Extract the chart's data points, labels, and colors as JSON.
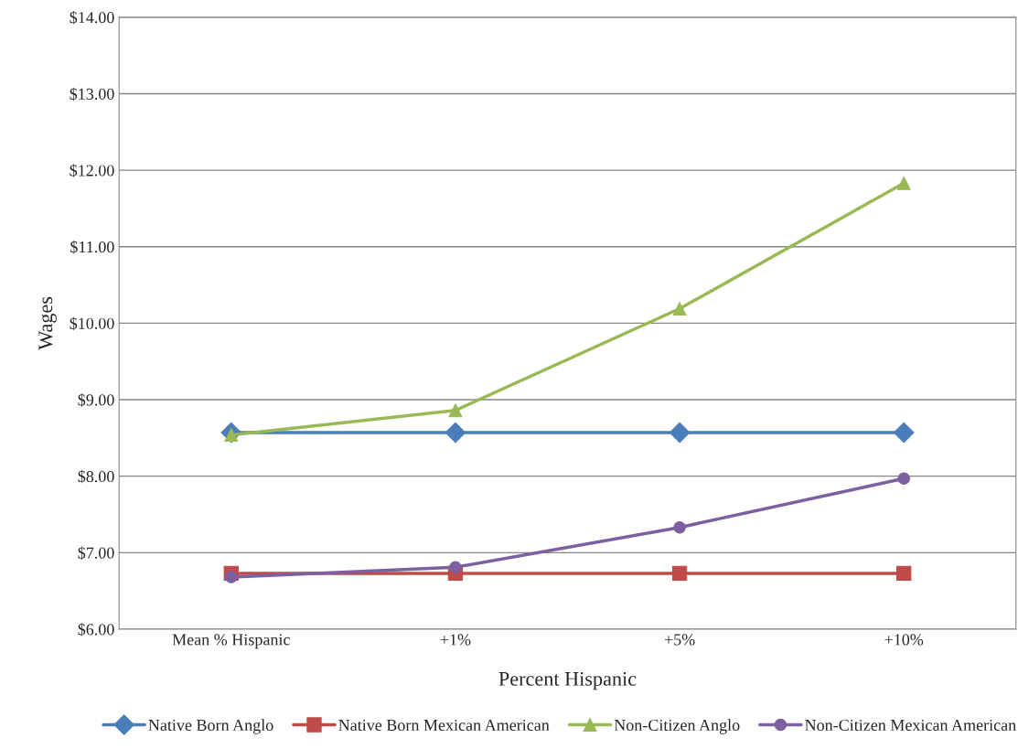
{
  "chart_data": {
    "type": "line",
    "xlabel": "Percent Hispanic",
    "ylabel": "Wages",
    "categories": [
      "Mean % Hispanic",
      "+1%",
      "+5%",
      "+10%"
    ],
    "series": [
      {
        "name": "Native Born Anglo",
        "color": "#4a7ebb",
        "marker": "diamond",
        "values": [
          8.57,
          8.57,
          8.57,
          8.57
        ]
      },
      {
        "name": "Native Born Mexican American",
        "color": "#be4b48",
        "marker": "square",
        "values": [
          6.73,
          6.73,
          6.73,
          6.73
        ]
      },
      {
        "name": "Non-Citizen Anglo",
        "color": "#98b954",
        "marker": "triangle",
        "values": [
          8.54,
          8.86,
          10.19,
          11.83
        ]
      },
      {
        "name": "Non-Citizen Mexican American",
        "color": "#7d60a0",
        "marker": "circle",
        "values": [
          6.68,
          6.81,
          7.33,
          7.97
        ]
      }
    ],
    "ylim": [
      6,
      14
    ],
    "yticks": [
      {
        "value": 6,
        "label": "$6.00"
      },
      {
        "value": 7,
        "label": "$7.00"
      },
      {
        "value": 8,
        "label": "$8.00"
      },
      {
        "value": 9,
        "label": "$9.00"
      },
      {
        "value": 10,
        "label": "$10.00"
      },
      {
        "value": 11,
        "label": "$11.00"
      },
      {
        "value": 12,
        "label": "$12.00"
      },
      {
        "value": 13,
        "label": "$13.00"
      },
      {
        "value": 14,
        "label": "$14.00"
      }
    ],
    "grid": "y",
    "legend": "bottom",
    "line_style": "solid"
  }
}
